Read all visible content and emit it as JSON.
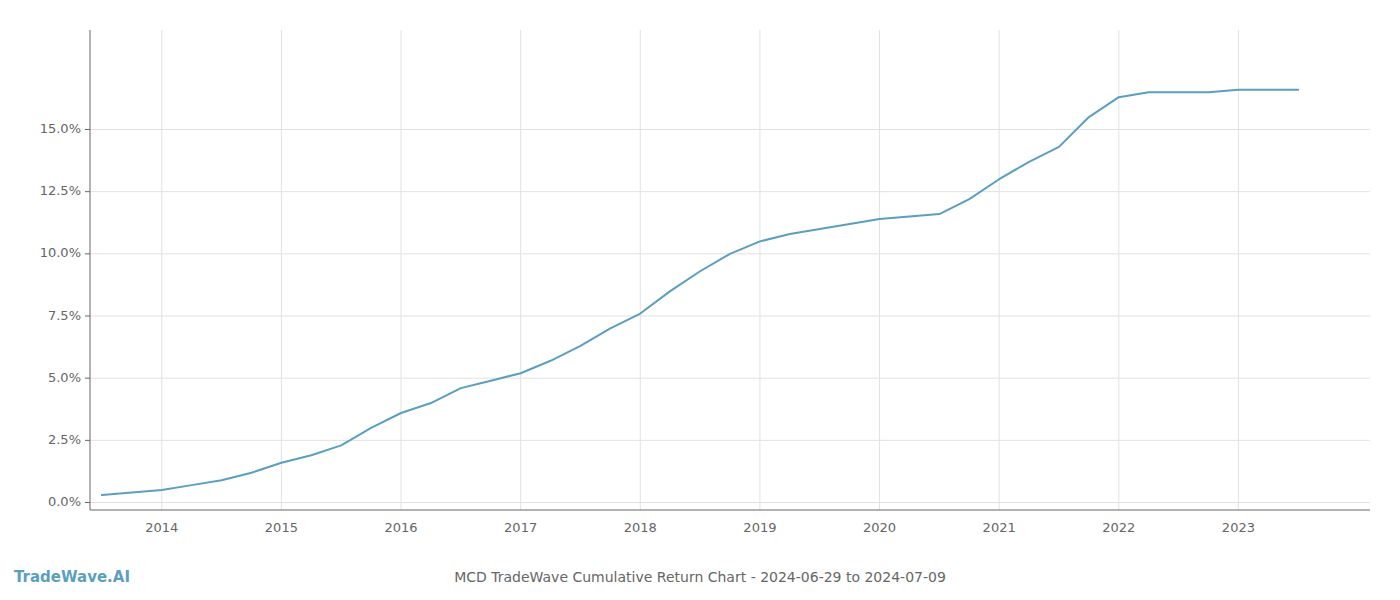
{
  "chart_data": {
    "type": "line",
    "title": "MCD TradeWave Cumulative Return Chart - 2024-06-29 to 2024-07-09",
    "annotations": [
      "TradeWave.AI"
    ],
    "color": "#5b9fc0",
    "grid": true,
    "x": [
      2013.5,
      2014.0,
      2014.25,
      2014.5,
      2014.75,
      2015.0,
      2015.25,
      2015.5,
      2015.75,
      2016.0,
      2016.25,
      2016.5,
      2016.75,
      2017.0,
      2017.25,
      2017.5,
      2017.75,
      2018.0,
      2018.25,
      2018.5,
      2018.75,
      2019.0,
      2019.25,
      2019.5,
      2019.75,
      2020.0,
      2020.25,
      2020.5,
      2020.75,
      2021.0,
      2021.25,
      2021.5,
      2021.75,
      2022.0,
      2022.25,
      2022.5,
      2022.75,
      2023.0,
      2023.25,
      2023.5
    ],
    "values": [
      0.003,
      0.005,
      0.007,
      0.009,
      0.012,
      0.016,
      0.019,
      0.023,
      0.03,
      0.036,
      0.04,
      0.046,
      0.049,
      0.052,
      0.057,
      0.063,
      0.07,
      0.076,
      0.085,
      0.093,
      0.1,
      0.105,
      0.108,
      0.11,
      0.112,
      0.114,
      0.115,
      0.116,
      0.122,
      0.13,
      0.137,
      0.143,
      0.155,
      0.163,
      0.165,
      0.165,
      0.165,
      0.166,
      0.166,
      0.166
    ],
    "xlim": [
      2013.4,
      2024.1
    ],
    "xticks": [
      2014,
      2015,
      2016,
      2017,
      2018,
      2019,
      2020,
      2021,
      2022,
      2023
    ],
    "ylim": [
      -0.003,
      0.19
    ],
    "yticks": [
      {
        "value": 0.0,
        "label": "0.0%"
      },
      {
        "value": 0.025,
        "label": "2.5%"
      },
      {
        "value": 0.05,
        "label": "5.0%"
      },
      {
        "value": 0.075,
        "label": "7.5%"
      },
      {
        "value": 0.1,
        "label": "10.0%"
      },
      {
        "value": 0.125,
        "label": "12.5%"
      },
      {
        "value": 0.15,
        "label": "15.0%"
      }
    ]
  }
}
